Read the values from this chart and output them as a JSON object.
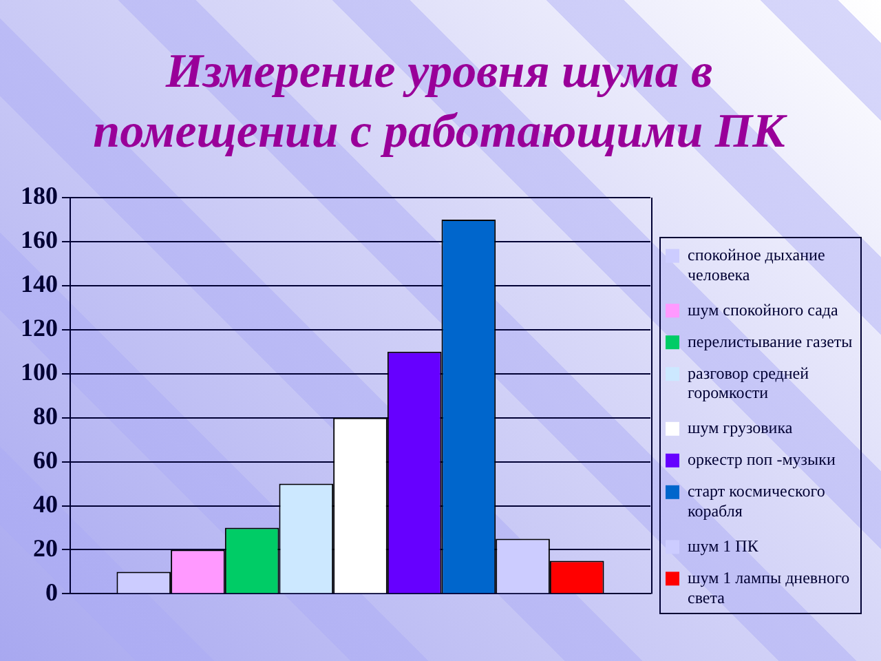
{
  "chart_data": {
    "type": "bar",
    "title": "Измерение уровня шума в помещении с работающими ПК",
    "categories": [
      null
    ],
    "series": [
      {
        "name": "спокойное дыхание человека",
        "color": "#ccccff",
        "values": [
          10
        ]
      },
      {
        "name": "шум спокойного сада",
        "color": "#ff99ff",
        "values": [
          20
        ]
      },
      {
        "name": "перелистывание газеты",
        "color": "#00cc66",
        "values": [
          30
        ]
      },
      {
        "name": "разговор средней горомкости",
        "color": "#cce8ff",
        "values": [
          50
        ]
      },
      {
        "name": "шум грузовика",
        "color": "#ffffff",
        "values": [
          80
        ]
      },
      {
        "name": "оркестр поп -музыки",
        "color": "#6600ff",
        "values": [
          110
        ]
      },
      {
        "name": "старт космического корабля",
        "color": "#0066cc",
        "values": [
          170
        ]
      },
      {
        "name": "шум 1 ПК",
        "color": "#ccccff",
        "values": [
          25
        ]
      },
      {
        "name": "шум 1 лампы дневного света",
        "color": "#ff0000",
        "values": [
          15
        ]
      }
    ],
    "ylim": [
      0,
      180
    ],
    "yticks": [
      0,
      20,
      40,
      60,
      80,
      100,
      120,
      140,
      160,
      180
    ],
    "grid": "y",
    "legend": "right"
  }
}
